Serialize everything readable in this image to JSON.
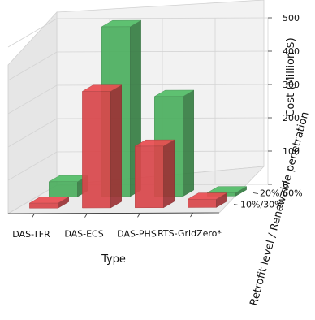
{
  "chart_data": {
    "type": "bar",
    "title": "",
    "xlabel": "Type",
    "ylabel": "Retrofit level / Renewable penetration",
    "zlabel": "Cost (Million $)",
    "categories": [
      "DAS-TFR",
      "DAS-ECS",
      "DAS-PHS",
      "RTS-GridZero*"
    ],
    "depth_categories": [
      "10%/30%",
      "20%/60%"
    ],
    "zlim": [
      0,
      500
    ],
    "zticks": [
      "0",
      "100",
      "200",
      "300",
      "400",
      "500"
    ],
    "grid": true,
    "series": [
      {
        "name": "10%/30%",
        "color": "#d9474b",
        "values": [
          15,
          350,
          185,
          25
        ]
      },
      {
        "name": "20%/60%",
        "color": "#4caf5f",
        "values": [
          45,
          510,
          300,
          10
        ]
      }
    ]
  }
}
